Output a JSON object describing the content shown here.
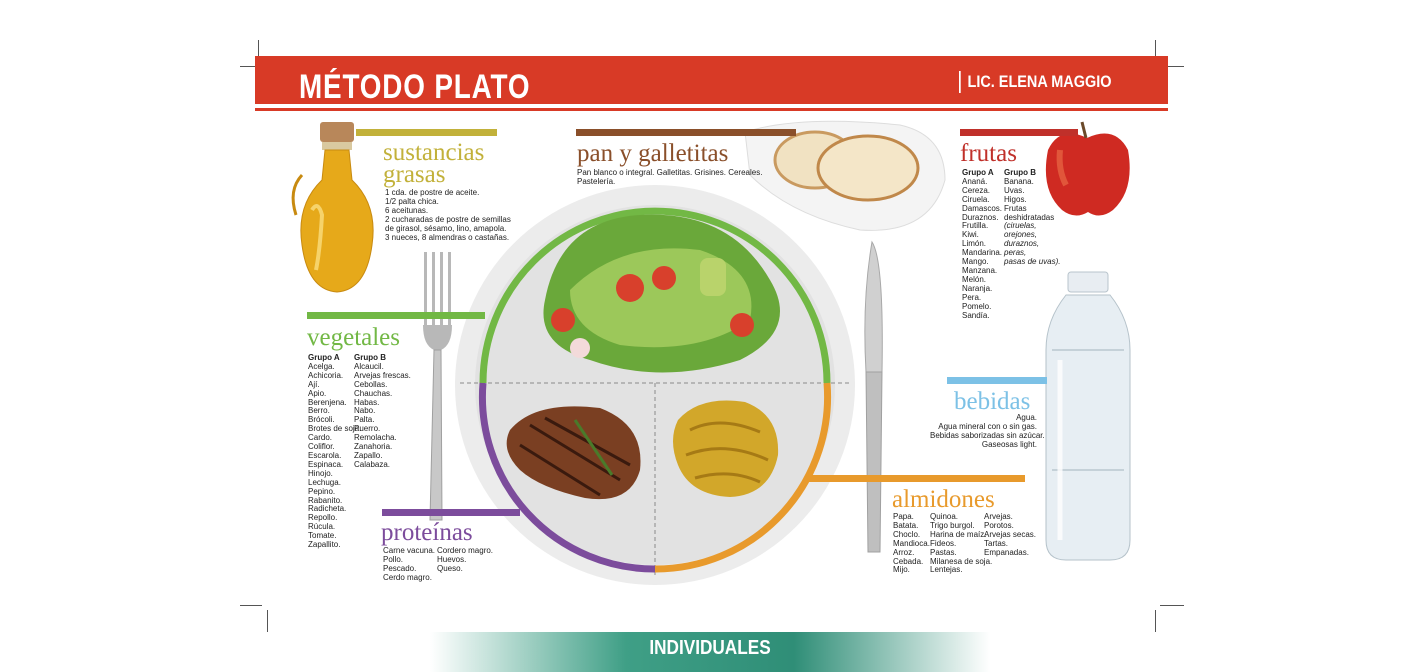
{
  "header": {
    "title": "MÉTODO PLATO",
    "author": "LIC. ELENA MAGGIO"
  },
  "colors": {
    "header_red": "#d83a26",
    "grasas": "#c2b13a",
    "pan": "#8a4f2a",
    "frutas": "#c0302a",
    "vegetales": "#72b845",
    "bebidas": "#7cc1e6",
    "almidones": "#e89a2c",
    "proteinas": "#7c4c9c",
    "footer": "#2f8e77"
  },
  "sections": {
    "grasas": {
      "title_1": "sustancias",
      "title_2": "grasas",
      "items": [
        "1 cda. de postre de aceite.",
        "1/2 palta chica.",
        "6 aceitunas.",
        "2 cucharadas de postre de semillas",
        "de girasol, sésamo, lino, amapola.",
        "3 nueces, 8 almendras o castañas."
      ]
    },
    "pan": {
      "title": "pan y galletitas",
      "line_1": "Pan blanco o integral. Galletitas. Grisines. Cereales.",
      "line_2": "Pastelería."
    },
    "frutas": {
      "title": "frutas",
      "group_a_label": "Grupo A",
      "group_a": [
        "Ananá.",
        "Cereza.",
        "Ciruela.",
        "Damascos.",
        "Duraznos.",
        "Frutilla.",
        "Kiwi.",
        "Limón.",
        "Mandarina.",
        "Mango.",
        "Manzana.",
        "Melón.",
        "Naranja.",
        "Pera.",
        "Pomelo.",
        "Sandía."
      ],
      "group_b_label": "Grupo B",
      "group_b": [
        "Banana.",
        "Uvas.",
        "Higos.",
        "Frutas",
        "deshidratadas"
      ],
      "group_b_italic": [
        "(ciruelas,",
        "orejones,",
        "duraznos,",
        "peras,",
        "pasas de uvas)."
      ]
    },
    "vegetales": {
      "title": "vegetales",
      "group_a_label": "Grupo A",
      "group_a": [
        "Acelga.",
        "Achicoria.",
        "Ají.",
        "Apio.",
        "Berenjena.",
        "Berro.",
        "Brócoli.",
        "Brotes de soja.",
        "Cardo.",
        "Coliflor.",
        "Escarola.",
        "Espinaca.",
        "Hinojo.",
        "Lechuga.",
        "Pepino.",
        "Rabanito.",
        "Radicheta.",
        "Repollo.",
        "Rúcula.",
        "Tomate.",
        "Zapallito."
      ],
      "group_b_label": "Grupo B",
      "group_b": [
        "Alcaucil.",
        "Arvejas frescas.",
        "Cebollas.",
        "Chauchas.",
        "Habas.",
        "Nabo.",
        "Palta.",
        "Puerro.",
        "Remolacha.",
        "Zanahoria.",
        "Zapallo.",
        "Calabaza."
      ]
    },
    "bebidas": {
      "title": "bebidas",
      "items": [
        "Agua.",
        "Agua mineral con o sin gas.",
        "Bebidas saborizadas sin azúcar.",
        "Gaseosas light."
      ]
    },
    "almidones": {
      "title": "almidones",
      "col_1": [
        "Papa.",
        "Batata.",
        "Choclo.",
        "Mandioca.",
        "Arroz.",
        "Cebada.",
        "Mijo."
      ],
      "col_2": [
        "Quinoa.",
        "Trigo burgol.",
        "Harina de maíz.",
        "Fideos.",
        "Pastas.",
        "Milanesa de soja.",
        "Lentejas."
      ],
      "col_3": [
        "Arvejas.",
        "Porotos.",
        "Arvejas secas.",
        "Tartas.",
        "Empanadas."
      ]
    },
    "proteinas": {
      "title": "proteínas",
      "col_1": [
        "Carne vacuna.",
        "Pollo.",
        "Pescado.",
        "Cerdo magro."
      ],
      "col_2": [
        "Cordero magro.",
        "Huevos.",
        "Queso."
      ]
    }
  },
  "footer": {
    "label": "INDIVIDUALES"
  }
}
